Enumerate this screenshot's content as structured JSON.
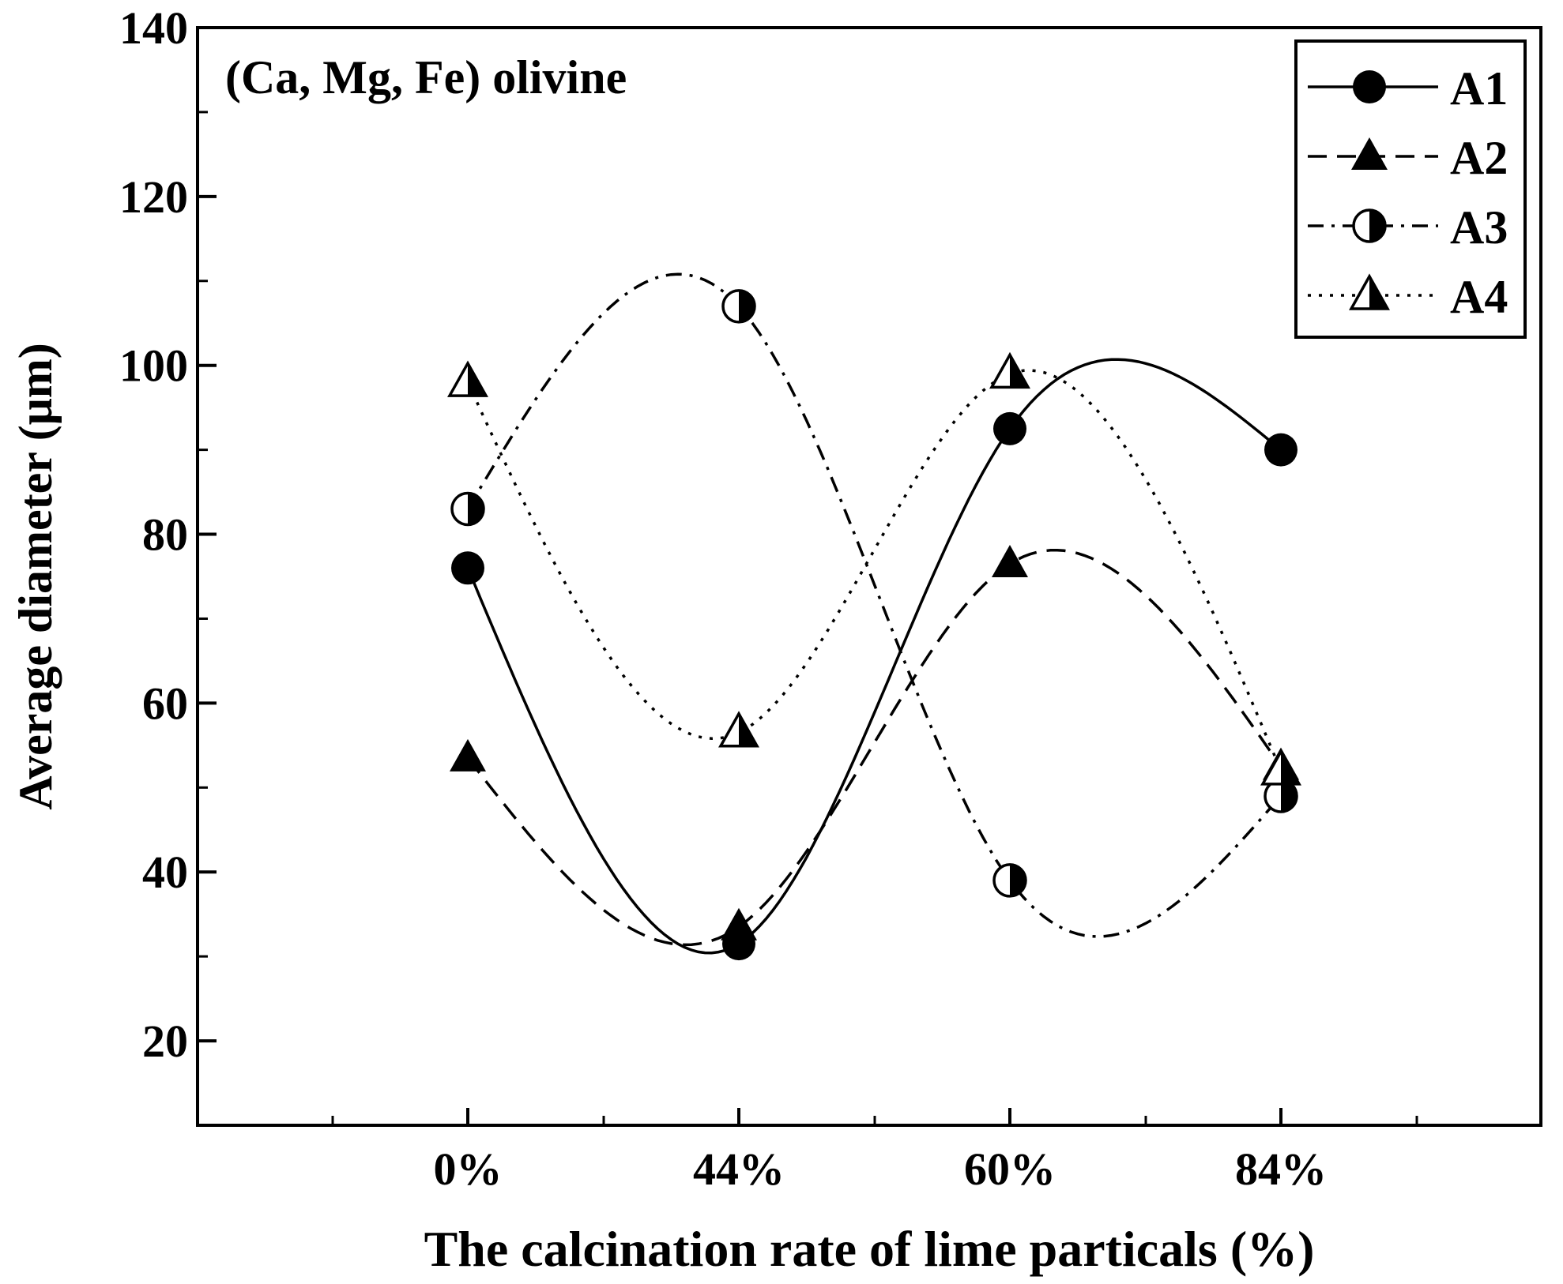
{
  "chart_data": {
    "type": "line",
    "title": "(Ca, Mg, Fe) olivine",
    "xlabel": "The calcination rate of lime particals (%)",
    "ylabel": "Average diameter (μm)",
    "categories": [
      "0%",
      "44%",
      "60%",
      "84%"
    ],
    "ylim": [
      10,
      140
    ],
    "yticks": [
      20,
      40,
      60,
      80,
      100,
      120,
      140
    ],
    "legend_position": "top-right",
    "grid": false,
    "series": [
      {
        "name": "A1",
        "marker": "filled-circle",
        "line": "solid",
        "values": [
          76,
          31.5,
          92.5,
          90
        ]
      },
      {
        "name": "A2",
        "marker": "filled-triangle",
        "line": "dashed",
        "values": [
          53.5,
          33.5,
          76.5,
          52.5
        ]
      },
      {
        "name": "A3",
        "marker": "half-circle",
        "line": "dash-dot",
        "values": [
          83,
          107,
          39,
          49
        ]
      },
      {
        "name": "A4",
        "marker": "half-triangle",
        "line": "dotted",
        "values": [
          98,
          56.5,
          99,
          52
        ]
      }
    ]
  }
}
